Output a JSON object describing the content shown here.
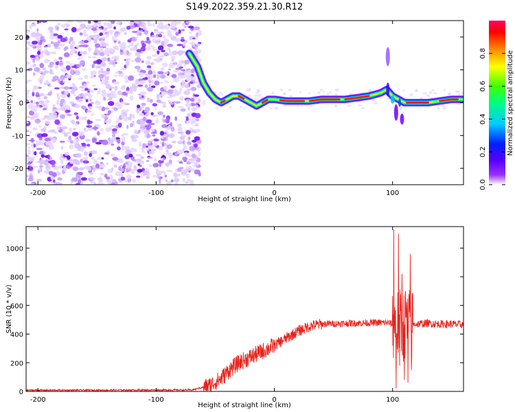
{
  "title": "S149.2022.359.21.30.R12",
  "chart_data": [
    {
      "type": "heatmap",
      "name": "spectrogram",
      "xlabel": "Height of straight line (km)",
      "ylabel": "Frequency (Hz)",
      "xlim": [
        -210,
        160
      ],
      "ylim": [
        -25,
        25
      ],
      "xticks": [
        -200,
        -100,
        0,
        100
      ],
      "yticks": [
        -20,
        -10,
        0,
        10,
        20
      ],
      "colorbar": {
        "label": "Normalized spectral amplitude",
        "range": [
          0.0,
          1.0
        ],
        "ticks": [
          "0.0",
          "0.2",
          "0.4",
          "0.6",
          "0.8"
        ],
        "tick_values": [
          0.0,
          0.2,
          0.4,
          0.6,
          0.8
        ],
        "colors": [
          "#ffffff",
          "#7a00ff",
          "#0000ff",
          "#00ffff",
          "#00ff00",
          "#ffff00",
          "#ff8800",
          "#ff0000",
          "#ff0066"
        ]
      },
      "noise_region_x": [
        -210,
        -63
      ],
      "signal_line": {
        "x": [
          -72,
          -65,
          -60,
          -55,
          -50,
          -45,
          -40,
          -35,
          -30,
          -25,
          -20,
          -15,
          -10,
          -5,
          0,
          10,
          20,
          30,
          40,
          50,
          60,
          70,
          80,
          90,
          95,
          100,
          105,
          110,
          120,
          130,
          140,
          150,
          160
        ],
        "y": [
          15,
          11,
          6,
          3,
          1,
          0,
          1,
          2,
          2,
          1,
          0,
          -1,
          0,
          1,
          1,
          0.5,
          0.5,
          0.5,
          1,
          1,
          1,
          1.5,
          2,
          3,
          4,
          2,
          1,
          0,
          0,
          0,
          0.5,
          1,
          1
        ]
      }
    },
    {
      "type": "line",
      "name": "snr",
      "xlabel": "Height of straight line (km)",
      "ylabel": "SNR (10 * v/v)",
      "xlim": [
        -210,
        160
      ],
      "ylim": [
        0,
        1150
      ],
      "xticks": [
        -200,
        -100,
        0,
        100
      ],
      "yticks": [
        0,
        200,
        400,
        600,
        800,
        1000
      ],
      "color": "#e8231c",
      "baseline_profile": {
        "x": [
          -210,
          -70,
          -55,
          -45,
          -38,
          -30,
          -20,
          -10,
          0,
          10,
          20,
          30,
          40,
          60,
          80,
          95,
          100,
          110,
          120,
          130,
          140,
          150,
          160
        ],
        "y": [
          8,
          10,
          40,
          90,
          150,
          200,
          240,
          280,
          320,
          370,
          420,
          455,
          470,
          475,
          478,
          480,
          470,
          460,
          470,
          475,
          470,
          470,
          465
        ]
      },
      "noise_amplitude": [
        {
          "x_from": -210,
          "x_to": -60,
          "amp": 6
        },
        {
          "x_from": -60,
          "x_to": 0,
          "amp": 60
        },
        {
          "x_from": 0,
          "x_to": 40,
          "amp": 40
        },
        {
          "x_from": 40,
          "x_to": 100,
          "amp": 25
        },
        {
          "x_from": 120,
          "x_to": 160,
          "amp": 28
        }
      ],
      "spikes": [
        {
          "x": 101,
          "y": 1130
        },
        {
          "x": 103,
          "y": 20
        },
        {
          "x": 105,
          "y": 1100
        },
        {
          "x": 106,
          "y": 180
        },
        {
          "x": 108,
          "y": 820
        },
        {
          "x": 110,
          "y": 80
        },
        {
          "x": 111,
          "y": 700
        },
        {
          "x": 113,
          "y": 60
        },
        {
          "x": 115,
          "y": 960
        },
        {
          "x": 116,
          "y": 150
        }
      ]
    }
  ]
}
